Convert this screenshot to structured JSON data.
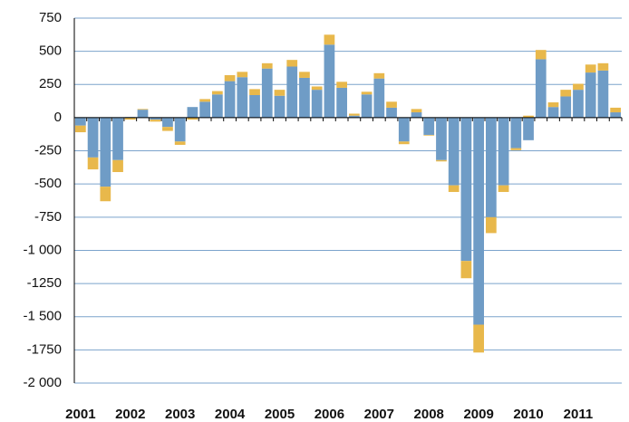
{
  "chart_data": {
    "type": "stacked-bar",
    "categories": [
      "2001",
      null,
      null,
      null,
      "2002",
      null,
      null,
      null,
      "2003",
      null,
      null,
      null,
      "2004",
      null,
      null,
      null,
      "2005",
      null,
      null,
      null,
      "2006",
      null,
      null,
      null,
      "2007",
      null,
      null,
      null,
      "2008",
      null,
      null,
      null,
      "2009",
      null,
      null,
      null,
      "2010",
      null,
      null,
      null,
      "2011",
      null,
      null,
      null
    ],
    "series": [
      {
        "color": "#6f9cc6",
        "values": [
          -60,
          -300,
          -520,
          -320,
          5,
          60,
          -15,
          -70,
          -180,
          80,
          120,
          175,
          275,
          305,
          170,
          370,
          165,
          385,
          300,
          210,
          550,
          225,
          15,
          175,
          295,
          75,
          -180,
          40,
          -130,
          -320,
          -510,
          -1080,
          -1560,
          -750,
          -510,
          -230,
          -170,
          440,
          80,
          160,
          210,
          340,
          355,
          40
        ]
      },
      {
        "color": "#e8b84b",
        "values": [
          -50,
          -90,
          -110,
          -90,
          -15,
          5,
          -15,
          -30,
          -25,
          -15,
          20,
          25,
          45,
          40,
          45,
          40,
          45,
          50,
          45,
          25,
          75,
          45,
          15,
          20,
          40,
          45,
          -20,
          25,
          -5,
          -10,
          -50,
          -130,
          -210,
          -120,
          -50,
          -15,
          15,
          70,
          35,
          50,
          45,
          60,
          55,
          35
        ]
      }
    ],
    "ylim": [
      -2000,
      750
    ],
    "yticks": [
      750,
      500,
      250,
      0,
      -250,
      -500,
      -750,
      {
        "value": -1000,
        "label": "-1 000"
      },
      -1250,
      {
        "value": -1500,
        "label": "-1 500"
      },
      -1750,
      {
        "value": -2000,
        "label": "-2 000"
      }
    ],
    "grid": true
  }
}
